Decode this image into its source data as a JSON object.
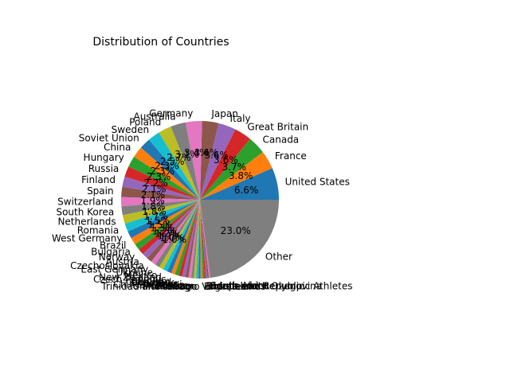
{
  "chart_data": {
    "type": "pie",
    "title": "Distribution of Countries",
    "value_format": "percent_1dp",
    "start_angle_deg": 0,
    "direction": "counterclockwise",
    "colors": [
      "#1f77b4",
      "#ff7f0e",
      "#2ca02c",
      "#d62728",
      "#9467bd",
      "#8c564b",
      "#e377c2",
      "#7f7f7f",
      "#bcbd22",
      "#17becf"
    ],
    "slices": [
      {
        "label": "United States",
        "value": 6.6
      },
      {
        "label": "France",
        "value": 3.8
      },
      {
        "label": "Canada",
        "value": 3.7
      },
      {
        "label": "Great Britain",
        "value": 3.6
      },
      {
        "label": "Italy",
        "value": 3.6
      },
      {
        "label": "Japan",
        "value": 3.4
      },
      {
        "label": "Germany",
        "value": 3.4
      },
      {
        "label": "Australia",
        "value": 3.1
      },
      {
        "label": "Poland",
        "value": 2.7
      },
      {
        "label": "Sweden",
        "value": 2.5
      },
      {
        "label": "Soviet Union",
        "value": 2.3
      },
      {
        "label": "China",
        "value": 2.3
      },
      {
        "label": "Hungary",
        "value": 2.3
      },
      {
        "label": "Russia",
        "value": 2.2
      },
      {
        "label": "Finland",
        "value": 2.1
      },
      {
        "label": "Spain",
        "value": 2.1
      },
      {
        "label": "Switzerland",
        "value": 1.9
      },
      {
        "label": "South Korea",
        "value": 1.8
      },
      {
        "label": "Netherlands",
        "value": 1.8
      },
      {
        "label": "Romania",
        "value": 1.7
      },
      {
        "label": "West Germany",
        "value": 1.5
      },
      {
        "label": "Brazil",
        "value": 1.5
      },
      {
        "label": "Bulgaria",
        "value": 1.3
      },
      {
        "label": "Norway",
        "value": 1.2
      },
      {
        "label": "Austria",
        "value": 1.2
      },
      {
        "label": "Czechoslovakia",
        "value": 1.1
      },
      {
        "label": "East Germany",
        "value": 1.0
      },
      {
        "label": "Ukraine",
        "value": 1.0
      },
      {
        "label": "Mexico",
        "value": 0.9
      },
      {
        "label": "New Zealand",
        "value": 0.9
      },
      {
        "label": "Czech Republic",
        "value": 0.9
      },
      {
        "label": "Belgium",
        "value": 0.8
      },
      {
        "label": "Denmark",
        "value": 0.8
      },
      {
        "label": "Belarus",
        "value": 0.7
      },
      {
        "label": "Chinese Taipei",
        "value": 0.7
      },
      {
        "label": "Croatia",
        "value": 0.6
      },
      {
        "label": "Greece",
        "value": 0.6
      },
      {
        "label": "Morocco",
        "value": 0.5
      },
      {
        "label": "Unified Team",
        "value": 0.5
      },
      {
        "label": "Trinidad and Tobago",
        "value": 0.5
      },
      {
        "label": "Montenegro",
        "value": 0.4
      },
      {
        "label": "Virgin Islands",
        "value": 0.4
      },
      {
        "label": "Emirates",
        "value": 0.4
      },
      {
        "label": "Bosnia and Herzegovina",
        "value": 0.3
      },
      {
        "label": "Independent Olympic Athletes",
        "value": 0.3
      },
      {
        "label": "Dominican Republic",
        "value": 0.3
      },
      {
        "label": "South Africa",
        "value": 0.3
      },
      {
        "label": "Other",
        "value": 23.0
      }
    ]
  }
}
